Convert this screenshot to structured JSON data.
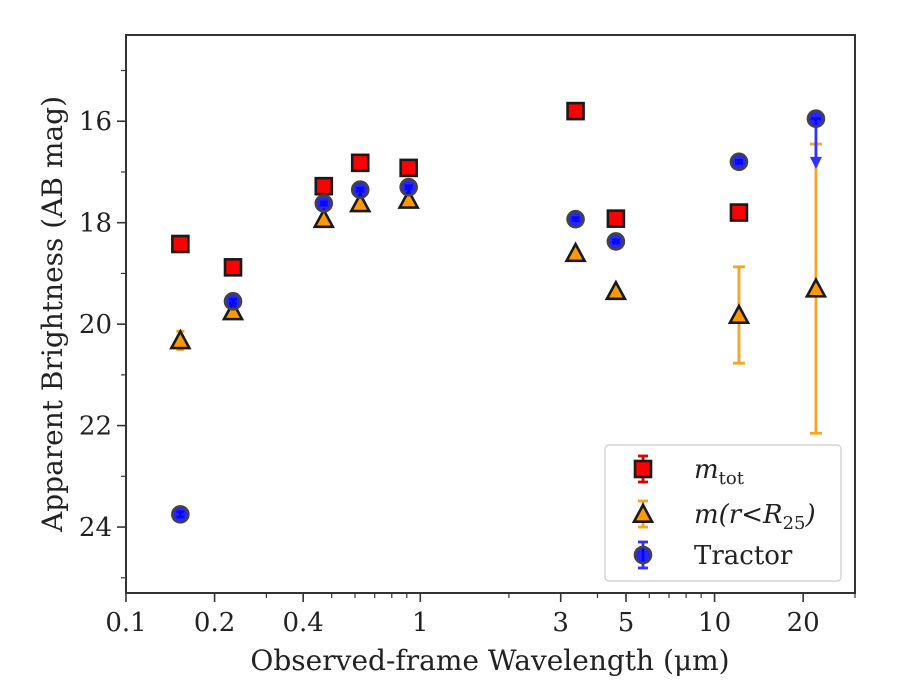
{
  "chart_data": {
    "type": "scatter",
    "xlabel": "Observed-frame Wavelength (μm)",
    "ylabel": "Apparent Brightness (AB mag)",
    "xscale": "log",
    "xlim": [
      0.1,
      30
    ],
    "ylim": [
      25.3,
      14.3
    ],
    "y_inverted": true,
    "x_ticks": [
      0.1,
      0.2,
      0.4,
      1,
      3,
      5,
      10,
      20
    ],
    "x_tick_labels": [
      "0.1",
      "0.2",
      "0.4",
      "1",
      "3",
      "5",
      "10",
      "20"
    ],
    "y_ticks": [
      16,
      18,
      20,
      22,
      24
    ],
    "y_tick_labels": [
      "16",
      "18",
      "20",
      "22",
      "24"
    ],
    "grid": false,
    "legend_position": "bottom-right",
    "series": [
      {
        "key": "mtot",
        "name": "m_tot",
        "legend_main": "m",
        "legend_sub": "tot",
        "marker": "square",
        "color": "#ff0000",
        "edge": "#1a1a1a",
        "errcolor": "#e00000",
        "points": [
          {
            "x": 0.153,
            "y": 18.42,
            "err": 0.03
          },
          {
            "x": 0.231,
            "y": 18.88,
            "err": 0.03
          },
          {
            "x": 0.47,
            "y": 17.28,
            "err": 0.02
          },
          {
            "x": 0.625,
            "y": 16.82,
            "err": 0.02
          },
          {
            "x": 0.913,
            "y": 16.92,
            "err": 0.02
          },
          {
            "x": 3.37,
            "y": 15.8,
            "err": 0.02
          },
          {
            "x": 4.62,
            "y": 17.92,
            "err": 0.02
          },
          {
            "x": 12.1,
            "y": 17.8,
            "err": 0.03
          }
        ]
      },
      {
        "key": "mr25",
        "name": "m(r<R_25)",
        "legend_main": "m(r<R",
        "legend_sub": "25",
        "legend_tail": ")",
        "marker": "triangle",
        "color": "#ff9900",
        "edge": "#1a1a1a",
        "errcolor": "#f5a623",
        "points": [
          {
            "x": 0.153,
            "y": 20.32,
            "err": 0.18
          },
          {
            "x": 0.231,
            "y": 19.75,
            "err": 0.05
          },
          {
            "x": 0.47,
            "y": 17.93,
            "err": 0.03
          },
          {
            "x": 0.625,
            "y": 17.62,
            "err": 0.03
          },
          {
            "x": 0.913,
            "y": 17.55,
            "err": 0.03
          },
          {
            "x": 3.37,
            "y": 18.6,
            "err": 0.04
          },
          {
            "x": 4.62,
            "y": 19.35,
            "err": 0.05
          },
          {
            "x": 12.1,
            "y": 19.82,
            "err": 0.95
          },
          {
            "x": 22.1,
            "y": 19.3,
            "err_low": 2.85,
            "err_high": 2.85
          }
        ]
      },
      {
        "key": "tractor",
        "name": "Tractor",
        "legend_main": "Tractor",
        "marker": "circle",
        "color": "#0000ff",
        "edge": "#444444",
        "errcolor": "#3030ff",
        "points": [
          {
            "x": 0.153,
            "y": 23.75,
            "err": 0.05
          },
          {
            "x": 0.231,
            "y": 19.55,
            "err": 0.04
          },
          {
            "x": 0.47,
            "y": 17.62,
            "err": 0.03
          },
          {
            "x": 0.625,
            "y": 17.35,
            "err": 0.03
          },
          {
            "x": 0.913,
            "y": 17.3,
            "err": 0.03
          },
          {
            "x": 3.37,
            "y": 17.93,
            "err": 0.03
          },
          {
            "x": 4.62,
            "y": 18.37,
            "err": 0.03
          },
          {
            "x": 12.1,
            "y": 16.8,
            "err": 0.03
          },
          {
            "x": 22.1,
            "y": 15.95,
            "err": 0.05,
            "upper_limit": true,
            "limit_to": 16.9
          }
        ]
      }
    ]
  }
}
